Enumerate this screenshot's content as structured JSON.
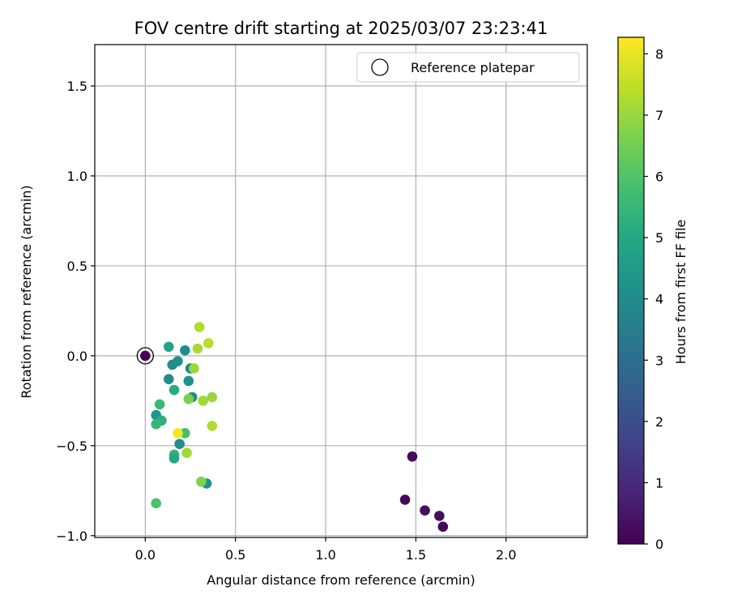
{
  "chart_data": {
    "type": "scatter",
    "title": "FOV centre drift starting at 2025/03/07 23:23:41",
    "xlabel": "Angular distance from reference (arcmin)",
    "ylabel": "Rotation from reference (arcmin)",
    "xlim": [
      -0.28,
      2.45
    ],
    "ylim": [
      -1.01,
      1.73
    ],
    "xticks": [
      0.0,
      0.5,
      1.0,
      1.5,
      2.0
    ],
    "xtick_labels": [
      "0.0",
      "0.5",
      "1.0",
      "1.5",
      "2.0"
    ],
    "yticks": [
      -1.0,
      -0.5,
      0.0,
      0.5,
      1.0,
      1.5
    ],
    "ytick_labels": [
      "−1.0",
      "−0.5",
      "0.0",
      "0.5",
      "1.0",
      "1.5"
    ],
    "grid": true,
    "legend": {
      "position": "top-right",
      "entries": [
        "Reference platepar"
      ]
    },
    "colorbar": {
      "label": "Hours from first FF file",
      "range": [
        0,
        8.27
      ],
      "ticks": [
        0,
        1,
        2,
        3,
        4,
        5,
        6,
        7,
        8
      ],
      "tick_labels": [
        "0",
        "1",
        "2",
        "3",
        "4",
        "5",
        "6",
        "7",
        "8"
      ],
      "colormap": "viridis"
    },
    "reference_point": {
      "x": 0.0,
      "y": 0.0
    },
    "points": [
      {
        "x": 0.0,
        "y": 0.0,
        "c": 0.1
      },
      {
        "x": 1.48,
        "y": -0.56,
        "c": 0.2
      },
      {
        "x": 1.44,
        "y": -0.8,
        "c": 0.2
      },
      {
        "x": 1.55,
        "y": -0.86,
        "c": 0.3
      },
      {
        "x": 1.63,
        "y": -0.89,
        "c": 0.3
      },
      {
        "x": 1.65,
        "y": -0.95,
        "c": 0.2
      },
      {
        "x": 0.13,
        "y": 0.05,
        "c": 4.8
      },
      {
        "x": 0.22,
        "y": 0.03,
        "c": 4.0
      },
      {
        "x": 0.18,
        "y": -0.03,
        "c": 4.1
      },
      {
        "x": 0.15,
        "y": -0.05,
        "c": 4.0
      },
      {
        "x": 0.25,
        "y": -0.07,
        "c": 3.9
      },
      {
        "x": 0.13,
        "y": -0.13,
        "c": 4.0
      },
      {
        "x": 0.24,
        "y": -0.14,
        "c": 4.2
      },
      {
        "x": 0.16,
        "y": -0.19,
        "c": 5.1
      },
      {
        "x": 0.26,
        "y": -0.23,
        "c": 4.0
      },
      {
        "x": 0.08,
        "y": -0.27,
        "c": 5.6
      },
      {
        "x": 0.06,
        "y": -0.33,
        "c": 4.4
      },
      {
        "x": 0.09,
        "y": -0.36,
        "c": 5.2
      },
      {
        "x": 0.06,
        "y": -0.38,
        "c": 5.5
      },
      {
        "x": 0.22,
        "y": -0.43,
        "c": 5.8
      },
      {
        "x": 0.19,
        "y": -0.49,
        "c": 4.1
      },
      {
        "x": 0.16,
        "y": -0.55,
        "c": 5.4
      },
      {
        "x": 0.16,
        "y": -0.57,
        "c": 5.0
      },
      {
        "x": 0.34,
        "y": -0.71,
        "c": 4.2
      },
      {
        "x": 0.06,
        "y": -0.82,
        "c": 5.9
      },
      {
        "x": 0.3,
        "y": 0.16,
        "c": 7.3
      },
      {
        "x": 0.35,
        "y": 0.07,
        "c": 7.4
      },
      {
        "x": 0.29,
        "y": 0.04,
        "c": 7.2
      },
      {
        "x": 0.27,
        "y": -0.07,
        "c": 7.0
      },
      {
        "x": 0.24,
        "y": -0.24,
        "c": 6.6
      },
      {
        "x": 0.32,
        "y": -0.25,
        "c": 7.1
      },
      {
        "x": 0.37,
        "y": -0.23,
        "c": 7.0
      },
      {
        "x": 0.37,
        "y": -0.39,
        "c": 7.3
      },
      {
        "x": 0.18,
        "y": -0.43,
        "c": 8.2
      },
      {
        "x": 0.23,
        "y": -0.54,
        "c": 7.1
      },
      {
        "x": 0.31,
        "y": -0.7,
        "c": 6.7
      }
    ]
  }
}
